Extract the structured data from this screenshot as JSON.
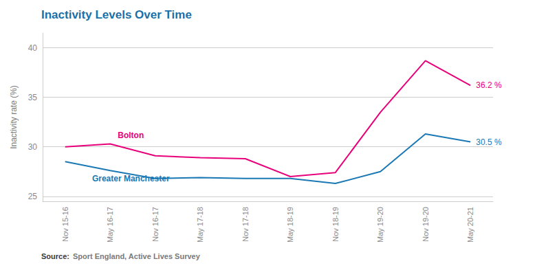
{
  "chart_data": {
    "type": "line",
    "title": "Inactivity Levels Over Time",
    "y_label": "Inactivity rate (%)",
    "categories": [
      "Nov 15-16",
      "May 16-17",
      "Nov 16-17",
      "May 17-18",
      "Nov 17-18",
      "May 18-19",
      "Nov 18-19",
      "May 19-20",
      "Nov 19-20",
      "May 20-21"
    ],
    "series": [
      {
        "name": "Bolton",
        "color": "#e8007a",
        "values": [
          30.0,
          30.3,
          29.1,
          28.9,
          28.8,
          27.0,
          27.4,
          33.5,
          38.7,
          36.2
        ],
        "end_label": "36.2 %"
      },
      {
        "name": "Greater Manchester",
        "color": "#1a78b4",
        "values": [
          28.5,
          27.6,
          26.8,
          26.9,
          26.8,
          26.8,
          26.3,
          27.5,
          31.3,
          30.5
        ],
        "end_label": "30.5 %"
      }
    ],
    "ylim": [
      24.5,
      41.5
    ],
    "yticks": [
      25,
      30,
      35,
      40
    ],
    "grid": true,
    "source": {
      "label": "Source:",
      "text": "Sport England, Active Lives Survey"
    }
  }
}
